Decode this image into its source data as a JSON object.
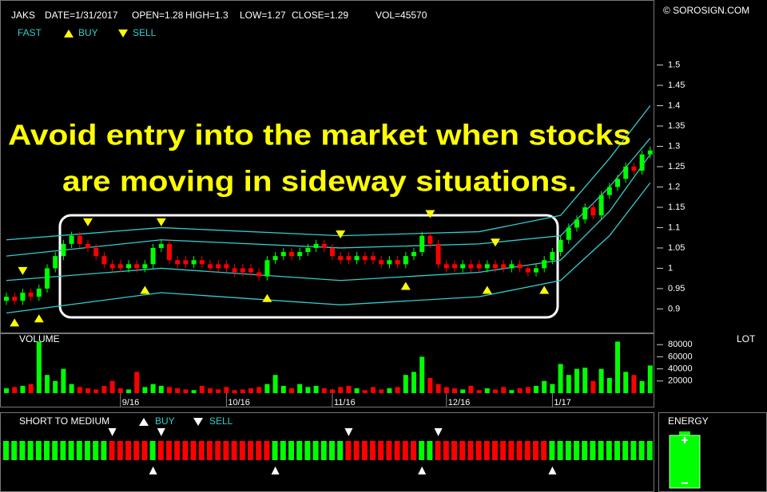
{
  "header": {
    "symbol": "JAKS",
    "date": "DATE=1/31/2017",
    "open": "OPEN=1.28",
    "high": "HIGH=1.3",
    "low": "LOW=1.27",
    "close": "CLOSE=1.29",
    "vol": "VOL=45570",
    "copyright": "© SOROSIGN.COM"
  },
  "chart_data": {
    "type": "candlestick",
    "annotation": [
      "Avoid entry into the market when stocks",
      "are moving in sideway situations."
    ],
    "up_color": "#00ff00",
    "down_color": "#ff0000",
    "open": [
      0.92,
      0.93,
      0.92,
      0.94,
      0.93,
      0.95,
      1.0,
      1.03,
      1.06,
      1.08,
      1.06,
      1.05,
      1.03,
      1.01,
      1.01,
      1.0,
      1.01,
      1.0,
      1.01,
      1.05,
      1.06,
      1.02,
      1.02,
      1.01,
      1.02,
      1.01,
      1.01,
      1.01,
      1.0,
      1.0,
      1.0,
      0.99,
      0.98,
      1.02,
      1.03,
      1.04,
      1.03,
      1.04,
      1.05,
      1.06,
      1.05,
      1.03,
      1.03,
      1.02,
      1.03,
      1.03,
      1.02,
      1.01,
      1.02,
      1.01,
      1.03,
      1.04,
      1.08,
      1.06,
      1.01,
      1.01,
      1.0,
      1.01,
      1.01,
      1.0,
      1.01,
      1.01,
      1.0,
      1.01,
      1.0,
      0.99,
      1.0,
      1.02,
      1.04,
      1.07,
      1.1,
      1.12,
      1.15,
      1.13,
      1.18,
      1.2,
      1.22,
      1.25,
      1.24,
      1.28
    ],
    "high": [
      0.94,
      0.94,
      0.95,
      0.95,
      0.96,
      1.01,
      1.04,
      1.07,
      1.09,
      1.09,
      1.07,
      1.06,
      1.04,
      1.02,
      1.02,
      1.02,
      1.02,
      1.02,
      1.06,
      1.07,
      1.07,
      1.03,
      1.03,
      1.03,
      1.03,
      1.02,
      1.02,
      1.02,
      1.01,
      1.01,
      1.01,
      1.0,
      1.03,
      1.04,
      1.05,
      1.05,
      1.05,
      1.06,
      1.07,
      1.07,
      1.06,
      1.04,
      1.04,
      1.04,
      1.04,
      1.04,
      1.03,
      1.03,
      1.03,
      1.04,
      1.05,
      1.09,
      1.09,
      1.07,
      1.02,
      1.02,
      1.02,
      1.02,
      1.02,
      1.02,
      1.02,
      1.02,
      1.02,
      1.02,
      1.01,
      1.01,
      1.03,
      1.05,
      1.08,
      1.11,
      1.13,
      1.16,
      1.16,
      1.19,
      1.21,
      1.23,
      1.26,
      1.26,
      1.29,
      1.3
    ],
    "low": [
      0.91,
      0.91,
      0.91,
      0.92,
      0.92,
      0.94,
      0.99,
      1.02,
      1.05,
      1.05,
      1.04,
      1.02,
      1.0,
      0.99,
      0.99,
      0.99,
      0.99,
      0.99,
      1.0,
      1.04,
      1.01,
      1.0,
      1.0,
      1.0,
      1.0,
      0.99,
      0.99,
      0.99,
      0.98,
      0.98,
      0.98,
      0.97,
      0.97,
      1.01,
      1.02,
      1.02,
      1.02,
      1.03,
      1.04,
      1.04,
      1.02,
      1.01,
      1.01,
      1.01,
      1.01,
      1.01,
      1.0,
      1.0,
      1.0,
      1.0,
      1.02,
      1.03,
      1.05,
      1.0,
      0.99,
      0.99,
      0.99,
      0.99,
      0.99,
      0.99,
      0.99,
      0.99,
      0.99,
      0.99,
      0.98,
      0.98,
      0.99,
      1.01,
      1.03,
      1.06,
      1.09,
      1.11,
      1.12,
      1.12,
      1.17,
      1.19,
      1.21,
      1.23,
      1.23,
      1.27
    ],
    "close": [
      0.93,
      0.92,
      0.94,
      0.93,
      0.95,
      1.0,
      1.03,
      1.06,
      1.08,
      1.06,
      1.05,
      1.03,
      1.01,
      1.0,
      1.0,
      1.01,
      1.0,
      1.01,
      1.05,
      1.06,
      1.02,
      1.01,
      1.01,
      1.02,
      1.01,
      1.0,
      1.0,
      1.0,
      0.99,
      0.99,
      0.99,
      0.98,
      1.02,
      1.03,
      1.04,
      1.03,
      1.04,
      1.05,
      1.06,
      1.05,
      1.03,
      1.02,
      1.02,
      1.03,
      1.02,
      1.02,
      1.01,
      1.02,
      1.01,
      1.03,
      1.04,
      1.08,
      1.06,
      1.01,
      1.0,
      1.0,
      1.01,
      1.0,
      1.0,
      1.01,
      1.0,
      1.0,
      1.01,
      1.0,
      0.99,
      1.0,
      1.02,
      1.04,
      1.07,
      1.1,
      1.12,
      1.15,
      1.13,
      1.18,
      1.2,
      1.22,
      1.25,
      1.24,
      1.28,
      1.29
    ],
    "ylim": [
      0.84,
      1.66
    ],
    "yticks": [
      0.9,
      0.95,
      1,
      1.05,
      1.1,
      1.15,
      1.2,
      1.25,
      1.3,
      1.35,
      1.4,
      1.45,
      1.5
    ],
    "xticks": [
      {
        "value": 14,
        "label": "9/16"
      },
      {
        "value": 27,
        "label": "10/16"
      },
      {
        "value": 40,
        "label": "11/16"
      },
      {
        "value": 54,
        "label": "12/16"
      },
      {
        "value": 67,
        "label": "1/17"
      }
    ],
    "legend": {
      "fast": "FAST",
      "buy": "BUY",
      "sell": "SELL"
    },
    "bands": {
      "color": "#33cccc",
      "x": [
        0,
        19,
        41,
        58,
        68,
        74,
        79
      ],
      "series": [
        [
          1.07,
          1.1,
          1.08,
          1.09,
          1.13,
          1.27,
          1.4
        ],
        [
          1.03,
          1.07,
          1.05,
          1.06,
          1.08,
          1.2,
          1.32
        ],
        [
          0.97,
          1.0,
          0.97,
          0.99,
          1.02,
          1.14,
          1.28
        ],
        [
          0.89,
          0.94,
          0.91,
          0.93,
          0.97,
          1.08,
          1.21
        ]
      ]
    },
    "signal_color": "#ffff00",
    "buy_signals": [
      1,
      4,
      17,
      32,
      49,
      59,
      66
    ],
    "sell_signals": [
      2,
      10,
      19,
      41,
      52,
      60
    ],
    "volume": {
      "title": "VOLUME",
      "unit": "LOT",
      "ylim": [
        0,
        100000
      ],
      "yticks": [
        20000,
        40000,
        60000,
        80000
      ],
      "values": [
        8000,
        10000,
        12000,
        15000,
        85000,
        30000,
        20000,
        40000,
        15000,
        10000,
        8000,
        6000,
        12000,
        20000,
        8000,
        6000,
        35000,
        10000,
        15000,
        12000,
        10000,
        8000,
        6000,
        5000,
        12000,
        8000,
        6000,
        10000,
        5000,
        6000,
        8000,
        10000,
        15000,
        30000,
        12000,
        8000,
        15000,
        10000,
        12000,
        8000,
        6000,
        10000,
        12000,
        8000,
        5000,
        10000,
        6000,
        8000,
        10000,
        30000,
        35000,
        60000,
        25000,
        15000,
        10000,
        8000,
        6000,
        12000,
        5000,
        8000,
        6000,
        10000,
        5000,
        8000,
        10000,
        12000,
        20000,
        15000,
        48000,
        30000,
        40000,
        42000,
        20000,
        40000,
        25000,
        85000,
        35000,
        30000,
        20000,
        45570
      ]
    },
    "signal": {
      "title": "SHORT TO MEDIUM",
      "buy": "BUY",
      "sell": "SELL",
      "trend": [
        1,
        1,
        1,
        1,
        1,
        1,
        1,
        1,
        1,
        1,
        1,
        1,
        1,
        -1,
        -1,
        -1,
        -1,
        -1,
        1,
        -1,
        -1,
        -1,
        -1,
        -1,
        -1,
        -1,
        -1,
        -1,
        -1,
        -1,
        -1,
        -1,
        -1,
        1,
        1,
        1,
        1,
        1,
        1,
        1,
        1,
        1,
        -1,
        -1,
        -1,
        -1,
        -1,
        -1,
        -1,
        -1,
        -1,
        1,
        1,
        -1,
        -1,
        -1,
        -1,
        -1,
        -1,
        -1,
        -1,
        -1,
        -1,
        -1,
        -1,
        -1,
        -1,
        1,
        1,
        1,
        1,
        1,
        1,
        1,
        1,
        1,
        1,
        1,
        1,
        1
      ],
      "buy_signals": [
        18,
        33,
        51,
        67
      ],
      "sell_signals": [
        13,
        19,
        42,
        53
      ]
    },
    "energy": {
      "title": "ENERGY"
    }
  }
}
